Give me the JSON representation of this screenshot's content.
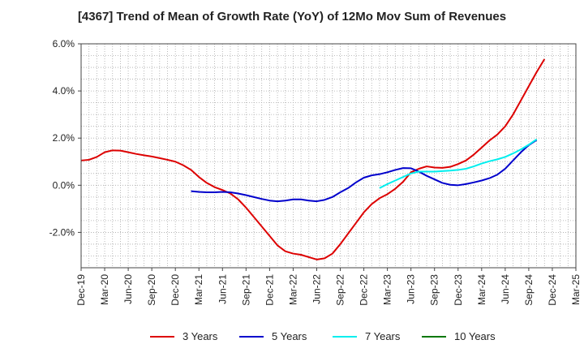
{
  "chart_data": {
    "type": "line",
    "title": "[4367]  Trend of Mean of Growth Rate (YoY) of 12Mo Mov Sum of Revenues",
    "xlabel": "",
    "ylabel": "",
    "ylim": [
      -3.5,
      6.0
    ],
    "yticks": [
      -2.0,
      0.0,
      2.0,
      4.0,
      6.0
    ],
    "ytick_labels": [
      "-2.0%",
      "0.0%",
      "2.0%",
      "4.0%",
      "6.0%"
    ],
    "x_start": "2019-12",
    "xtick_labels": [
      "Dec-19",
      "Mar-20",
      "Jun-20",
      "Sep-20",
      "Dec-20",
      "Mar-21",
      "Jun-21",
      "Sep-21",
      "Dec-21",
      "Mar-22",
      "Jun-22",
      "Sep-22",
      "Dec-22",
      "Mar-23",
      "Jun-23",
      "Sep-23",
      "Dec-23",
      "Mar-24",
      "Jun-24",
      "Sep-24",
      "Dec-24",
      "Mar-25"
    ],
    "grid": true,
    "legend_position": "bottom",
    "series": [
      {
        "name": "3 Years",
        "color": "#dd0000",
        "start_index": 0,
        "values": [
          1.05,
          1.08,
          1.2,
          1.4,
          1.48,
          1.47,
          1.4,
          1.33,
          1.27,
          1.22,
          1.15,
          1.08,
          1.0,
          0.85,
          0.65,
          0.35,
          0.1,
          -0.08,
          -0.2,
          -0.35,
          -0.6,
          -0.95,
          -1.35,
          -1.75,
          -2.15,
          -2.55,
          -2.8,
          -2.9,
          -2.95,
          -3.05,
          -3.15,
          -3.1,
          -2.9,
          -2.5,
          -2.05,
          -1.6,
          -1.15,
          -0.8,
          -0.55,
          -0.38,
          -0.15,
          0.15,
          0.55,
          0.7,
          0.8,
          0.75,
          0.74,
          0.78,
          0.9,
          1.05,
          1.3,
          1.6,
          1.9,
          2.15,
          2.5,
          3.0,
          3.6,
          4.2,
          4.8,
          5.35
        ]
      },
      {
        "name": "5 Years",
        "color": "#0000cc",
        "start_index": 14,
        "values": [
          -0.25,
          -0.28,
          -0.3,
          -0.3,
          -0.28,
          -0.3,
          -0.35,
          -0.42,
          -0.5,
          -0.58,
          -0.65,
          -0.68,
          -0.65,
          -0.6,
          -0.6,
          -0.65,
          -0.68,
          -0.62,
          -0.5,
          -0.3,
          -0.12,
          0.12,
          0.32,
          0.42,
          0.47,
          0.55,
          0.65,
          0.73,
          0.72,
          0.58,
          0.4,
          0.25,
          0.1,
          0.02,
          0.0,
          0.05,
          0.12,
          0.2,
          0.3,
          0.45,
          0.7,
          1.05,
          1.4,
          1.7,
          1.92
        ]
      },
      {
        "name": "7 Years",
        "color": "#00eeee",
        "start_index": 38,
        "values": [
          -0.12,
          0.05,
          0.2,
          0.35,
          0.5,
          0.58,
          0.58,
          0.58,
          0.6,
          0.62,
          0.65,
          0.7,
          0.8,
          0.92,
          1.02,
          1.1,
          1.2,
          1.35,
          1.52,
          1.72,
          1.95
        ]
      },
      {
        "name": "10 Years",
        "color": "#007700",
        "start_index": 0,
        "values": []
      }
    ]
  }
}
